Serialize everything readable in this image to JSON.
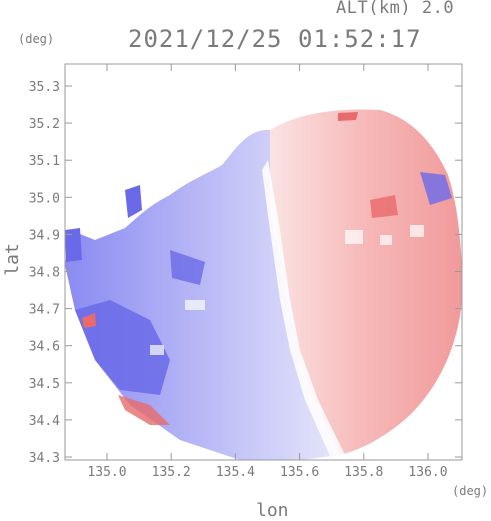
{
  "header": {
    "altitude": "ALT(km) 2.0",
    "timestamp": "2021/12/25 01:52:17"
  },
  "axes": {
    "x_label": "lon",
    "y_label": "lat",
    "x_unit": "(deg)",
    "y_unit": "(deg)",
    "x_ticks": [
      "135.0",
      "135.2",
      "135.4",
      "135.6",
      "135.8",
      "136.0"
    ],
    "y_ticks": [
      "35.3",
      "35.2",
      "35.1",
      "35.0",
      "34.9",
      "34.8",
      "34.7",
      "34.6",
      "34.5",
      "34.4",
      "34.3"
    ]
  },
  "colors": {
    "toward": "#7d7df0",
    "away": "#f07d7d",
    "frame": "#9a9a9a"
  }
}
